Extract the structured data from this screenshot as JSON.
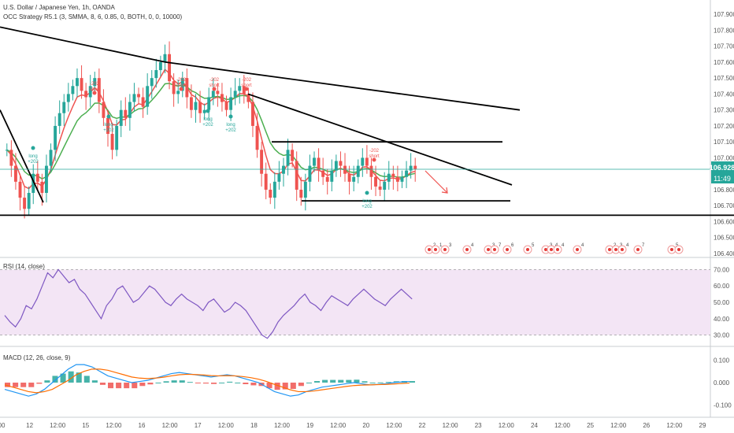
{
  "header": {
    "symbol_title": "U.S. Dollar / Japanese Yen, 1h, OANDA",
    "indicator_title": "OCC Strategy R5.1 (3, SMMA, 8, 6, 0.85, 0, BOTH, 0, 0, 10000)"
  },
  "price_axis": {
    "ticks": [
      "107.900",
      "107.800",
      "107.700",
      "107.600",
      "107.500",
      "107.400",
      "107.300",
      "107.200",
      "107.100",
      "107.000",
      "106.900",
      "106.800",
      "106.700",
      "106.600",
      "106.500",
      "106.400"
    ],
    "current_price": "106.928",
    "countdown": "11:49"
  },
  "time_axis": {
    "labels": [
      "00",
      "12",
      "12:00",
      "15",
      "12:00",
      "16",
      "12:00",
      "17",
      "12:00",
      "18",
      "12:00",
      "19",
      "12:00",
      "20",
      "12:00",
      "22",
      "12:00",
      "23",
      "12:00",
      "24",
      "12:00",
      "25",
      "12:00",
      "26",
      "12:00",
      "29"
    ]
  },
  "rsi": {
    "title": "RSI (14, close)",
    "ticks": [
      "70.00",
      "60.00",
      "50.00",
      "40.00",
      "30.00"
    ],
    "upper": 70,
    "lower": 30
  },
  "macd": {
    "title": "MACD (12, 26, close, 9)",
    "ticks": [
      "0.100",
      "0.000",
      "-0.100"
    ]
  },
  "signals": [
    {
      "kind": "short",
      "text": "-202 short"
    },
    {
      "kind": "short",
      "text": "-202 short"
    },
    {
      "kind": "short",
      "text": "-202 short"
    },
    {
      "kind": "short",
      "text": "-202 short"
    },
    {
      "kind": "short",
      "text": "-202 short"
    },
    {
      "kind": "long",
      "text": "long +202"
    },
    {
      "kind": "long",
      "text": "long +202"
    },
    {
      "kind": "long",
      "text": "long +202"
    },
    {
      "kind": "long",
      "text": "long +202"
    },
    {
      "kind": "long",
      "text": "long +202"
    }
  ],
  "event_numbers": [
    "2",
    "1",
    "3",
    "4",
    "3",
    "7",
    "6",
    "5",
    "3",
    "4",
    "4",
    "4",
    "2",
    "3",
    "4",
    "7",
    "5"
  ],
  "colors": {
    "up": "#26a69a",
    "down": "#ef5350",
    "trendline": "#000000",
    "ma_fast": "#ef5350",
    "ma_slow": "#4caf50",
    "rsi_line": "#7e57c2",
    "rsi_band": "#f3e5f5",
    "macd_line": "#2196f3",
    "signal_line": "#ff6d00",
    "price_line": "#26a69a"
  },
  "chart_data": [
    {
      "type": "candlestick",
      "title": "U.S. Dollar / Japanese Yen, 1h, OANDA",
      "ylim": [
        106.4,
        107.95
      ],
      "close_series": [
        107.05,
        106.95,
        106.85,
        106.75,
        106.68,
        106.78,
        106.9,
        106.85,
        106.78,
        106.95,
        107.05,
        107.2,
        107.28,
        107.35,
        107.4,
        107.45,
        107.5,
        107.42,
        107.38,
        107.45,
        107.5,
        107.35,
        107.25,
        107.15,
        107.05,
        107.2,
        107.3,
        107.25,
        107.35,
        107.4,
        107.38,
        107.32,
        107.45,
        107.5,
        107.55,
        107.6,
        107.65,
        107.48,
        107.4,
        107.42,
        107.5,
        107.38,
        107.3,
        107.35,
        107.28,
        107.3,
        107.38,
        107.42,
        107.4,
        107.35,
        107.3,
        107.38,
        107.42,
        107.45,
        107.4,
        107.35,
        107.2,
        107.05,
        106.9,
        106.8,
        106.75,
        106.85,
        106.9,
        106.95,
        107.05,
        106.98,
        106.8,
        106.75,
        106.85,
        106.95,
        107.0,
        106.92,
        106.88,
        106.85,
        106.92,
        106.98,
        106.95,
        106.9,
        106.85,
        106.88,
        106.95,
        107.0,
        106.95,
        106.88,
        106.82,
        106.8,
        106.85,
        106.9,
        106.88,
        106.85,
        106.88,
        106.92,
        106.95,
        106.93
      ],
      "trendlines": [
        {
          "from": [
            0,
            107.82
          ],
          "to": [
            210,
            107.6
          ]
        },
        {
          "from": [
            210,
            107.6
          ],
          "to": [
            660,
            107.3
          ]
        },
        {
          "from": [
            0,
            107.3
          ],
          "to": [
            55,
            106.72
          ]
        },
        {
          "from": [
            315,
            107.4
          ],
          "to": [
            650,
            106.83
          ]
        },
        {
          "from": [
            0,
            106.64
          ],
          "to": [
            932,
            106.64
          ]
        },
        {
          "from": [
            345,
            107.1
          ],
          "to": [
            638,
            107.1
          ]
        },
        {
          "from": [
            383,
            106.73
          ],
          "to": [
            648,
            106.73
          ]
        }
      ]
    },
    {
      "type": "line",
      "title": "RSI (14, close)",
      "ylim": [
        25,
        75
      ],
      "series": [
        {
          "name": "RSI",
          "values": [
            42,
            38,
            35,
            40,
            48,
            46,
            52,
            60,
            68,
            65,
            70,
            66,
            62,
            64,
            58,
            55,
            50,
            45,
            40,
            48,
            52,
            58,
            60,
            55,
            50,
            52,
            56,
            60,
            58,
            54,
            50,
            48,
            52,
            55,
            52,
            50,
            48,
            45,
            50,
            52,
            48,
            44,
            46,
            50,
            48,
            45,
            40,
            35,
            30,
            28,
            32,
            38,
            42,
            45,
            48,
            52,
            55,
            50,
            48,
            45,
            50,
            54,
            52,
            50,
            48,
            52,
            55,
            58,
            55,
            52,
            50,
            48,
            52,
            55,
            58,
            55,
            52
          ]
        }
      ]
    },
    {
      "type": "line",
      "title": "MACD (12, 26, close, 9)",
      "ylim": [
        -0.14,
        0.14
      ],
      "series": [
        {
          "name": "MACD",
          "values": [
            -0.03,
            -0.04,
            -0.05,
            -0.06,
            -0.05,
            -0.03,
            0.0,
            0.03,
            0.06,
            0.08,
            0.08,
            0.07,
            0.05,
            0.03,
            0.02,
            0.01,
            0.0,
            0.005,
            0.01,
            0.02,
            0.03,
            0.04,
            0.045,
            0.04,
            0.035,
            0.03,
            0.025,
            0.03,
            0.035,
            0.03,
            0.02,
            0.01,
            0.0,
            -0.02,
            -0.04,
            -0.05,
            -0.06,
            -0.055,
            -0.04,
            -0.03,
            -0.02,
            -0.015,
            -0.01,
            -0.005,
            0.0,
            -0.005,
            -0.01,
            -0.008,
            -0.005,
            0.0,
            0.003,
            0.005
          ]
        },
        {
          "name": "Signal",
          "values": [
            -0.01,
            -0.02,
            -0.03,
            -0.04,
            -0.045,
            -0.04,
            -0.03,
            -0.01,
            0.01,
            0.035,
            0.05,
            0.06,
            0.06,
            0.055,
            0.045,
            0.035,
            0.025,
            0.02,
            0.018,
            0.02,
            0.024,
            0.03,
            0.035,
            0.037,
            0.036,
            0.034,
            0.031,
            0.03,
            0.031,
            0.03,
            0.027,
            0.022,
            0.015,
            0.005,
            -0.008,
            -0.02,
            -0.032,
            -0.04,
            -0.04,
            -0.037,
            -0.032,
            -0.027,
            -0.022,
            -0.017,
            -0.013,
            -0.011,
            -0.01,
            -0.009,
            -0.008,
            -0.006,
            -0.004,
            -0.002
          ]
        }
      ]
    }
  ]
}
